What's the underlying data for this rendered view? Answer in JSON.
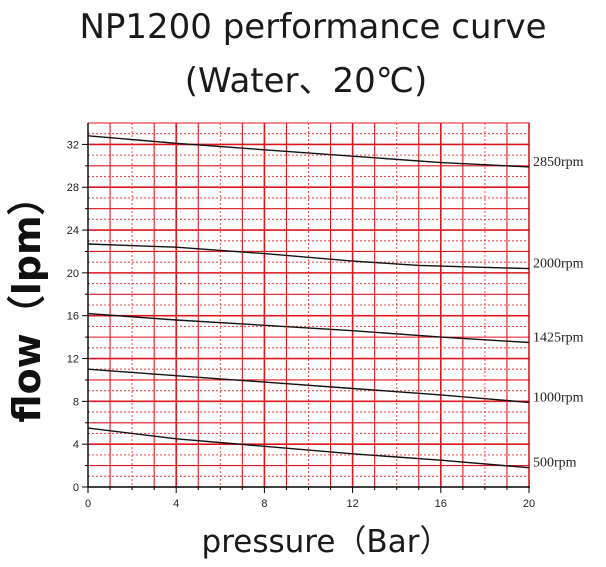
{
  "title": "NP1200 performance curve",
  "subtitle": "(Water、20℃)",
  "chart_data": {
    "type": "line",
    "xlabel": "pressure（Bar）",
    "ylabel": "flow（lpm）",
    "xlim": [
      0,
      20
    ],
    "ylim": [
      0,
      34
    ],
    "x_ticks": [
      0,
      4,
      8,
      12,
      16,
      20
    ],
    "y_ticks": [
      0,
      4,
      8,
      12,
      16,
      20,
      24,
      28,
      32
    ],
    "grid": true,
    "series": [
      {
        "name": "2850rpm",
        "points": [
          [
            0,
            32.8
          ],
          [
            4,
            32.1
          ],
          [
            8,
            31.5
          ],
          [
            12,
            30.9
          ],
          [
            16,
            30.3
          ],
          [
            20,
            29.9
          ]
        ]
      },
      {
        "name": "2000rpm",
        "points": [
          [
            0,
            22.7
          ],
          [
            4,
            22.4
          ],
          [
            8,
            21.8
          ],
          [
            12,
            21.1
          ],
          [
            15,
            20.7
          ],
          [
            20,
            20.4
          ]
        ]
      },
      {
        "name": "1425rpm",
        "points": [
          [
            0,
            16.2
          ],
          [
            4,
            15.6
          ],
          [
            8,
            15.1
          ],
          [
            12,
            14.6
          ],
          [
            16,
            14.0
          ],
          [
            20,
            13.5
          ]
        ]
      },
      {
        "name": "1000rpm",
        "points": [
          [
            0,
            11.0
          ],
          [
            4,
            10.4
          ],
          [
            8,
            9.8
          ],
          [
            12,
            9.2
          ],
          [
            16,
            8.6
          ],
          [
            20,
            7.9
          ]
        ]
      },
      {
        "name": "500rpm",
        "points": [
          [
            0,
            5.5
          ],
          [
            4,
            4.5
          ],
          [
            8,
            3.8
          ],
          [
            12,
            3.1
          ],
          [
            16,
            2.5
          ],
          [
            20,
            1.8
          ]
        ]
      }
    ]
  },
  "colors": {
    "major_grid": "#e0141e",
    "minor_grid": "#ec4a4a",
    "curve": "#111111",
    "axis": "#000000"
  }
}
